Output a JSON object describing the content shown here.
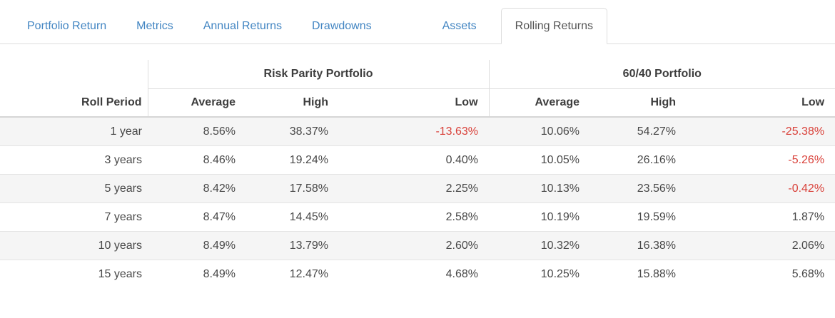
{
  "tabs": {
    "items": [
      {
        "label": "Portfolio Return",
        "active": false
      },
      {
        "label": "Metrics",
        "active": false
      },
      {
        "label": "Annual Returns",
        "active": false
      },
      {
        "label": "Drawdowns",
        "active": false
      },
      {
        "label": "Assets",
        "active": false
      },
      {
        "label": "Rolling Returns",
        "active": true
      }
    ]
  },
  "table": {
    "corner_label": "Roll Period",
    "groups": [
      {
        "label": "Risk Parity Portfolio",
        "columns": [
          "Average",
          "High",
          "Low"
        ]
      },
      {
        "label": "60/40 Portfolio",
        "columns": [
          "Average",
          "High",
          "Low"
        ]
      }
    ],
    "rows": [
      {
        "period": "1 year",
        "values": [
          "8.56%",
          "38.37%",
          "-13.63%",
          "10.06%",
          "54.27%",
          "-25.38%"
        ]
      },
      {
        "period": "3 years",
        "values": [
          "8.46%",
          "19.24%",
          "0.40%",
          "10.05%",
          "26.16%",
          "-5.26%"
        ]
      },
      {
        "period": "5 years",
        "values": [
          "8.42%",
          "17.58%",
          "2.25%",
          "10.13%",
          "23.56%",
          "-0.42%"
        ]
      },
      {
        "period": "7 years",
        "values": [
          "8.47%",
          "14.45%",
          "2.58%",
          "10.19%",
          "19.59%",
          "1.87%"
        ]
      },
      {
        "period": "10 years",
        "values": [
          "8.49%",
          "13.79%",
          "2.60%",
          "10.32%",
          "16.38%",
          "2.06%"
        ]
      },
      {
        "period": "15 years",
        "values": [
          "8.49%",
          "12.47%",
          "4.68%",
          "10.25%",
          "15.88%",
          "5.68%"
        ]
      }
    ]
  },
  "colors": {
    "accent_blue": "#4285c2",
    "negative_red": "#d9413a",
    "active_tab_text": "#555555",
    "stripe_background": "#f5f5f5"
  }
}
